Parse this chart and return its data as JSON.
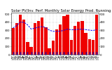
{
  "title": "Solar PV/Inv. Perf. Monthly Solar Energy Prod. Running Avg.",
  "months": [
    "Jan\n'10",
    "Feb\n'10",
    "Mar\n'10",
    "Apr\n'10",
    "May\n'10",
    "Jun\n'10",
    "Jul\n'10",
    "Aug\n'10",
    "Sep\n'10",
    "Oct\n'10",
    "Nov\n'10",
    "Dec\n'10",
    "Jan\n'11",
    "Feb\n'11",
    "Mar\n'11",
    "Apr\n'11",
    "May\n'11",
    "Jun\n'11",
    "Jul\n'11",
    "Aug\n'11",
    "Sep\n'11",
    "Oct\n'11",
    "Nov\n'11",
    "Dec\n'11"
  ],
  "values": [
    330,
    390,
    490,
    430,
    160,
    95,
    390,
    415,
    460,
    340,
    75,
    175,
    310,
    375,
    480,
    490,
    185,
    355,
    405,
    420,
    270,
    190,
    185,
    490
  ],
  "running_avg": [
    330,
    360,
    403,
    400,
    368,
    316,
    328,
    339,
    348,
    335,
    302,
    288,
    288,
    290,
    302,
    315,
    308,
    308,
    312,
    315,
    309,
    303,
    298,
    310
  ],
  "bar_color": "#ee0000",
  "avg_color": "#0000ff",
  "marker_color": "#0000cc",
  "bg_color": "#ffffff",
  "plot_bg": "#ffffff",
  "grid_color": "#bbbbbb",
  "ylim": [
    0,
    520
  ],
  "yticks": [
    0,
    100,
    200,
    300,
    400,
    500
  ],
  "title_fontsize": 3.8,
  "tick_fontsize": 2.8,
  "bar_width": 0.82
}
